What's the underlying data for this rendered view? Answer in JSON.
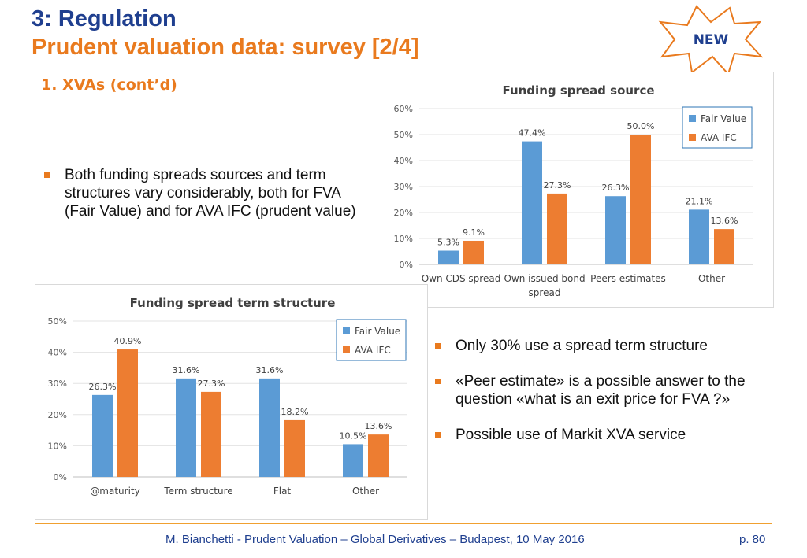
{
  "header": {
    "title": "3: Regulation",
    "subtitle": "Prudent valuation data: survey [2/4]",
    "section": "1.  XVAs (cont’d)",
    "badge": "NEW"
  },
  "bullets_left": [
    "Both funding spreads sources and term structures vary considerably, both for FVA (Fair Value) and for AVA IFC (prudent value)"
  ],
  "bullets_right": [
    "Only 30% use a spread term structure",
    "«Peer estimate» is a possible answer to the question «what is an exit price for FVA ?»",
    "Possible use of Markit XVA service"
  ],
  "colors": {
    "fair_value": "#5b9bd5",
    "ava_ifc": "#ed7d31",
    "title_blue": "#1f3f8f",
    "accent_orange": "#e97a1e"
  },
  "chart_data": [
    {
      "type": "bar",
      "title": "Funding spread source",
      "categories": [
        "Own CDS spread",
        "Own issued bond spread",
        "Peers estimates",
        "Other"
      ],
      "category_lines": [
        [
          "Own CDS spread"
        ],
        [
          "Own issued bond",
          "spread"
        ],
        [
          "Peers estimates"
        ],
        [
          "Other"
        ]
      ],
      "series": [
        {
          "name": "Fair Value",
          "values": [
            5.3,
            47.4,
            26.3,
            21.1
          ]
        },
        {
          "name": "AVA IFC",
          "values": [
            9.1,
            27.3,
            50.0,
            13.6
          ]
        }
      ],
      "ylim": [
        0,
        60
      ],
      "yticks": [
        0,
        10,
        20,
        30,
        40,
        50,
        60
      ],
      "ytick_labels": [
        "0%",
        "10%",
        "20%",
        "30%",
        "40%",
        "50%",
        "60%"
      ],
      "legend": "top-right",
      "grid": true
    },
    {
      "type": "bar",
      "title": "Funding spread term structure",
      "categories": [
        "@maturity",
        "Term structure",
        "Flat",
        "Other"
      ],
      "category_lines": [
        [
          "@maturity"
        ],
        [
          "Term structure"
        ],
        [
          "Flat"
        ],
        [
          "Other"
        ]
      ],
      "series": [
        {
          "name": "Fair Value",
          "values": [
            26.3,
            31.6,
            31.6,
            10.5
          ]
        },
        {
          "name": "AVA IFC",
          "values": [
            40.9,
            27.3,
            18.2,
            13.6
          ]
        }
      ],
      "ylim": [
        0,
        50
      ],
      "yticks": [
        0,
        10,
        20,
        30,
        40,
        50
      ],
      "ytick_labels": [
        "0%",
        "10%",
        "20%",
        "30%",
        "40%",
        "50%"
      ],
      "legend": "top-right",
      "grid": true
    }
  ],
  "footer": {
    "text": "M. Bianchetti - Prudent Valuation – Global Derivatives – Budapest, 10 May 2016",
    "page": "p. 80"
  }
}
